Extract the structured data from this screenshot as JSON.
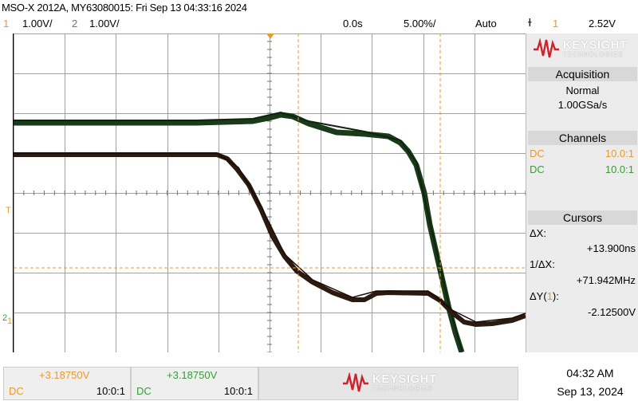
{
  "header": {
    "title": "MSO-X 2012A, MY63080015: Fri Sep 13 04:33:16 2024",
    "ch1_num": "1",
    "ch1_scale": "1.00V/",
    "ch2_num": "2",
    "ch2_scale": "1.00V/",
    "delay": "0.0s",
    "timebase": "5.00%/",
    "trigger_mode": "Auto",
    "trigger_icon": "edge-trigger-icon",
    "trigger_ch": "1",
    "trigger_level": "2.52V"
  },
  "brand": {
    "name": "KEYSIGHT",
    "sub": "TECHNOLOGIES"
  },
  "acquisition": {
    "title": "Acquisition",
    "mode": "Normal",
    "rate": "1.00GSa/s"
  },
  "channels": {
    "title": "Channels",
    "rows": [
      {
        "coupling": "DC",
        "probe": "10.0:1"
      },
      {
        "coupling": "DC",
        "probe": "10.0:1"
      }
    ]
  },
  "cursors": {
    "title": "Cursors",
    "dx_label": "ΔX:",
    "dx_value": "+13.900ns",
    "inv_label": "1/ΔX:",
    "inv_value": "+71.942MHz",
    "dy_label_pre": "ΔY(",
    "dy_label_ch": "1",
    "dy_label_post": "):",
    "dy_value": "-2.12500V"
  },
  "footer": {
    "ch1": {
      "value": "+3.18750V",
      "coupling": "DC",
      "probe": "10:0:1"
    },
    "ch2": {
      "value": "+3.18750V",
      "coupling": "DC",
      "probe": "10:0:1"
    },
    "time": "04:32 AM",
    "date": "Sep 13, 2024"
  },
  "markers": {
    "trigger_level": "T",
    "ch1_ground": "1",
    "ch2_ground": "2"
  },
  "colors": {
    "ch1": "#e89a2c",
    "ch2": "#3a9a3a",
    "trace1": "#2b1a10",
    "trace2": "#1a3a1a",
    "brand": "#d0202a"
  }
}
